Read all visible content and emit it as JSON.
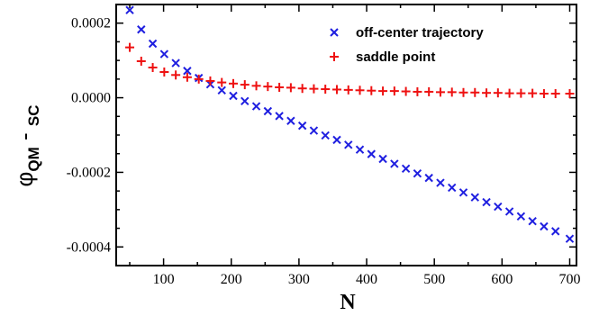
{
  "chart_data": {
    "type": "scatter",
    "xlabel": "N",
    "ylabel": {
      "main": "φ",
      "sub1": "QM",
      "sep": " - ",
      "sub2": "SC"
    },
    "xlim": [
      30,
      710
    ],
    "ylim": [
      -0.00045,
      0.00025
    ],
    "x_ticks": [
      100,
      200,
      300,
      400,
      500,
      600,
      700
    ],
    "y_ticks": [
      {
        "value": 0.0002,
        "label": "0.0002"
      },
      {
        "value": 0.0,
        "label": "0.0000"
      },
      {
        "value": -0.0002,
        "label": "-0.0002"
      },
      {
        "value": -0.0004,
        "label": "-0.0004"
      }
    ],
    "legend_position": "top-right",
    "series": [
      {
        "name": "off-center trajectory",
        "marker": "x",
        "color": "#1f1fe0",
        "x": [
          50,
          67,
          84,
          101,
          118,
          135,
          152,
          169,
          186,
          203,
          220,
          237,
          254,
          271,
          288,
          305,
          322,
          339,
          356,
          373,
          390,
          407,
          424,
          441,
          458,
          475,
          492,
          509,
          526,
          543,
          560,
          577,
          594,
          611,
          628,
          645,
          662,
          679,
          700
        ],
        "y": [
          0.000235,
          0.000183,
          0.000145,
          0.000117,
          9.3e-05,
          7.2e-05,
          5.3e-05,
          3.6e-05,
          2e-05,
          5e-06,
          -9e-06,
          -2.3e-05,
          -3.6e-05,
          -4.9e-05,
          -6.2e-05,
          -7.5e-05,
          -8.8e-05,
          -0.000101,
          -0.000113,
          -0.000126,
          -0.000139,
          -0.000151,
          -0.000164,
          -0.000177,
          -0.00019,
          -0.000203,
          -0.000215,
          -0.000228,
          -0.000241,
          -0.000254,
          -0.000267,
          -0.00028,
          -0.000292,
          -0.000305,
          -0.000318,
          -0.000331,
          -0.000345,
          -0.000358,
          -0.000378
        ]
      },
      {
        "name": "saddle point",
        "marker": "+",
        "color": "#ee1111",
        "x": [
          50,
          67,
          84,
          101,
          118,
          135,
          152,
          169,
          186,
          203,
          220,
          237,
          254,
          271,
          288,
          305,
          322,
          339,
          356,
          373,
          390,
          407,
          424,
          441,
          458,
          475,
          492,
          509,
          526,
          543,
          560,
          577,
          594,
          611,
          628,
          645,
          662,
          679,
          700
        ],
        "y": [
          0.000135,
          9.8e-05,
          8.1e-05,
          6.9e-05,
          6.1e-05,
          5.5e-05,
          5e-05,
          4.5e-05,
          4.1e-05,
          3.8e-05,
          3.5e-05,
          3.2e-05,
          3e-05,
          2.8e-05,
          2.7e-05,
          2.5e-05,
          2.4e-05,
          2.3e-05,
          2.2e-05,
          2.1e-05,
          2e-05,
          1.9e-05,
          1.8e-05,
          1.8e-05,
          1.7e-05,
          1.6e-05,
          1.6e-05,
          1.5e-05,
          1.5e-05,
          1.4e-05,
          1.4e-05,
          1.3e-05,
          1.3e-05,
          1.2e-05,
          1.2e-05,
          1.2e-05,
          1.1e-05,
          1.1e-05,
          1.1e-05
        ]
      }
    ]
  }
}
